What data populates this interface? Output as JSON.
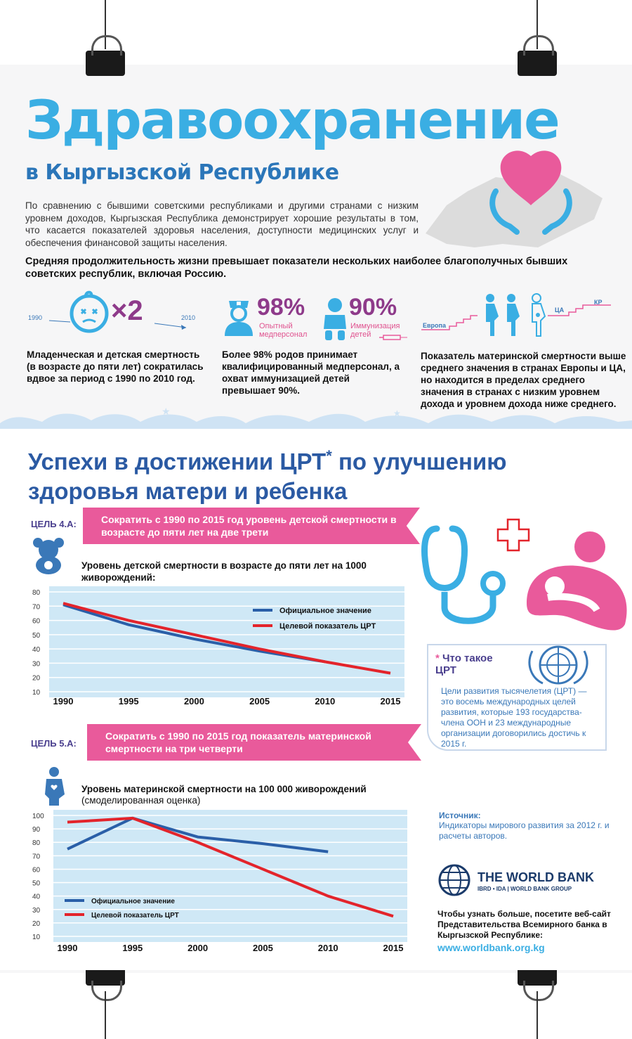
{
  "header": {
    "title": "Здравоохранение",
    "subtitle": "в Кыргызской Республике",
    "intro": "По сравнению с бывшими советскими республиками и другими странами с низким уровнем доходов, Кыргызская Республика демонстрирует хорошие результаты в том, что касается показателей здоровья населения, доступности медицинских услуг и обеспечения финансовой защиты населения.",
    "lead": "Средняя продолжительность жизни превышает показатели нескольких наиболее благополучных бывших советских республик, включая Россию."
  },
  "stats": {
    "child": {
      "year_start": "1990",
      "year_end": "2010",
      "multiplier": "×2",
      "caption": "Младенческая и детская смертность (в возрасте до пяти лет) сократилась вдвое за период с 1990 по 2010 год."
    },
    "births": {
      "pct_staff": "98%",
      "label_staff": "Опытный медперсонал",
      "pct_immun": "90%",
      "label_immun": "Иммунизация детей",
      "caption": "Более 98% родов принимает квалифицированный медперсонал, а охват иммунизацией детей превышает 90%."
    },
    "maternal": {
      "label_europe": "Европа",
      "label_ca": "ЦА",
      "label_kr": "КР",
      "caption": "Показатель материнской смертности выше среднего значения в странах Европы и ЦА, но находится в пределах среднего значения в странах с низким уровнем дохода и уровнем дохода ниже среднего."
    }
  },
  "section2": {
    "heading_part1": "Успехи в достижении ЦРТ",
    "asterisk": "*",
    "heading_part2": "по улучшению здоровья матери и ребенка"
  },
  "goal4": {
    "tag": "ЦЕЛЬ 4.А:",
    "band": "Сократить с 1990 по 2015 год уровень детской смертности в возрасте до пяти лет на две трети",
    "chart_title": "Уровень детской смертности в возрасте до пяти лет на 1000 живорождений:"
  },
  "goal5": {
    "tag": "ЦЕЛЬ 5.А:",
    "band": "Сократить с 1990 по 2015 год показатель материнской смертности на три четверти",
    "chart_title": "Уровень материнской смертности на 100 000 живорождений",
    "chart_subtitle": "(смоделированная оценка)"
  },
  "mdg": {
    "star": "*",
    "question": "Что такое ЦРТ",
    "text": "Цели развития тысячелетия (ЦРТ) — это восемь международных целей развития, которые 193 государства-члена ООН и 23 международные организации договорились достичь к 2015 г."
  },
  "source": {
    "heading": "Источник:",
    "text": "Индикаторы мирового развития за 2012 г. и расчеты авторов."
  },
  "worldbank": {
    "name": "THE WORLD BANK",
    "sub": "IBRD • IDA | WORLD BANK GROUP",
    "visit": "Чтобы узнать больше, посетите веб-сайт Представительства Всемирного банка в Кыргызской Республике:",
    "url": "www.worldbank.org.kg"
  },
  "colors": {
    "title_blue": "#3aaee3",
    "dark_blue": "#2b76b9",
    "pink": "#e95a9b",
    "purple": "#8e3a8a",
    "chart_bg": "#cfe8f6",
    "official_line": "#2a5fa8",
    "target_line": "#e3242b"
  },
  "chart_data": [
    {
      "type": "line",
      "title": "Уровень детской смертности в возрасте до пяти лет на 1000 живорождений:",
      "x_ticks": [
        "1990",
        "1995",
        "2000",
        "2005",
        "2010",
        "2015"
      ],
      "y_ticks": [
        "80",
        "70",
        "60",
        "50",
        "40",
        "30",
        "20",
        "10"
      ],
      "ylim": [
        10,
        80
      ],
      "xlim": [
        1990,
        2015
      ],
      "grid": true,
      "legend_position": "top-right",
      "series": [
        {
          "name": "Официальное значение",
          "color": "#2a5fa8",
          "x": [
            1990,
            1995,
            2000,
            2005,
            2010
          ],
          "y": [
            71,
            57,
            47,
            38.5,
            31
          ]
        },
        {
          "name": "Целевой показатель ЦРТ",
          "color": "#e3242b",
          "x": [
            1990,
            1995,
            2000,
            2005,
            2010,
            2015
          ],
          "y": [
            72,
            60,
            50,
            40,
            31,
            23
          ]
        }
      ]
    },
    {
      "type": "line",
      "title": "Уровень материнской смертности на 100 000 живорождений",
      "x_ticks": [
        "1990",
        "1995",
        "2000",
        "2005",
        "2010",
        "2015"
      ],
      "y_ticks": [
        "100",
        "90",
        "80",
        "70",
        "60",
        "50",
        "40",
        "30",
        "20",
        "10"
      ],
      "ylim": [
        10,
        100
      ],
      "xlim": [
        1990,
        2015
      ],
      "grid": true,
      "legend_position": "bottom-left",
      "series": [
        {
          "name": "Официальное значение",
          "color": "#2a5fa8",
          "x": [
            1990,
            1995,
            2000,
            2005,
            2010
          ],
          "y": [
            75,
            98,
            84,
            79,
            73
          ]
        },
        {
          "name": "Целевой показатель ЦРТ",
          "color": "#e3242b",
          "x": [
            1990,
            1995,
            2000,
            2005,
            2010,
            2015
          ],
          "y": [
            95,
            98,
            80,
            60,
            40,
            25
          ]
        }
      ]
    }
  ]
}
